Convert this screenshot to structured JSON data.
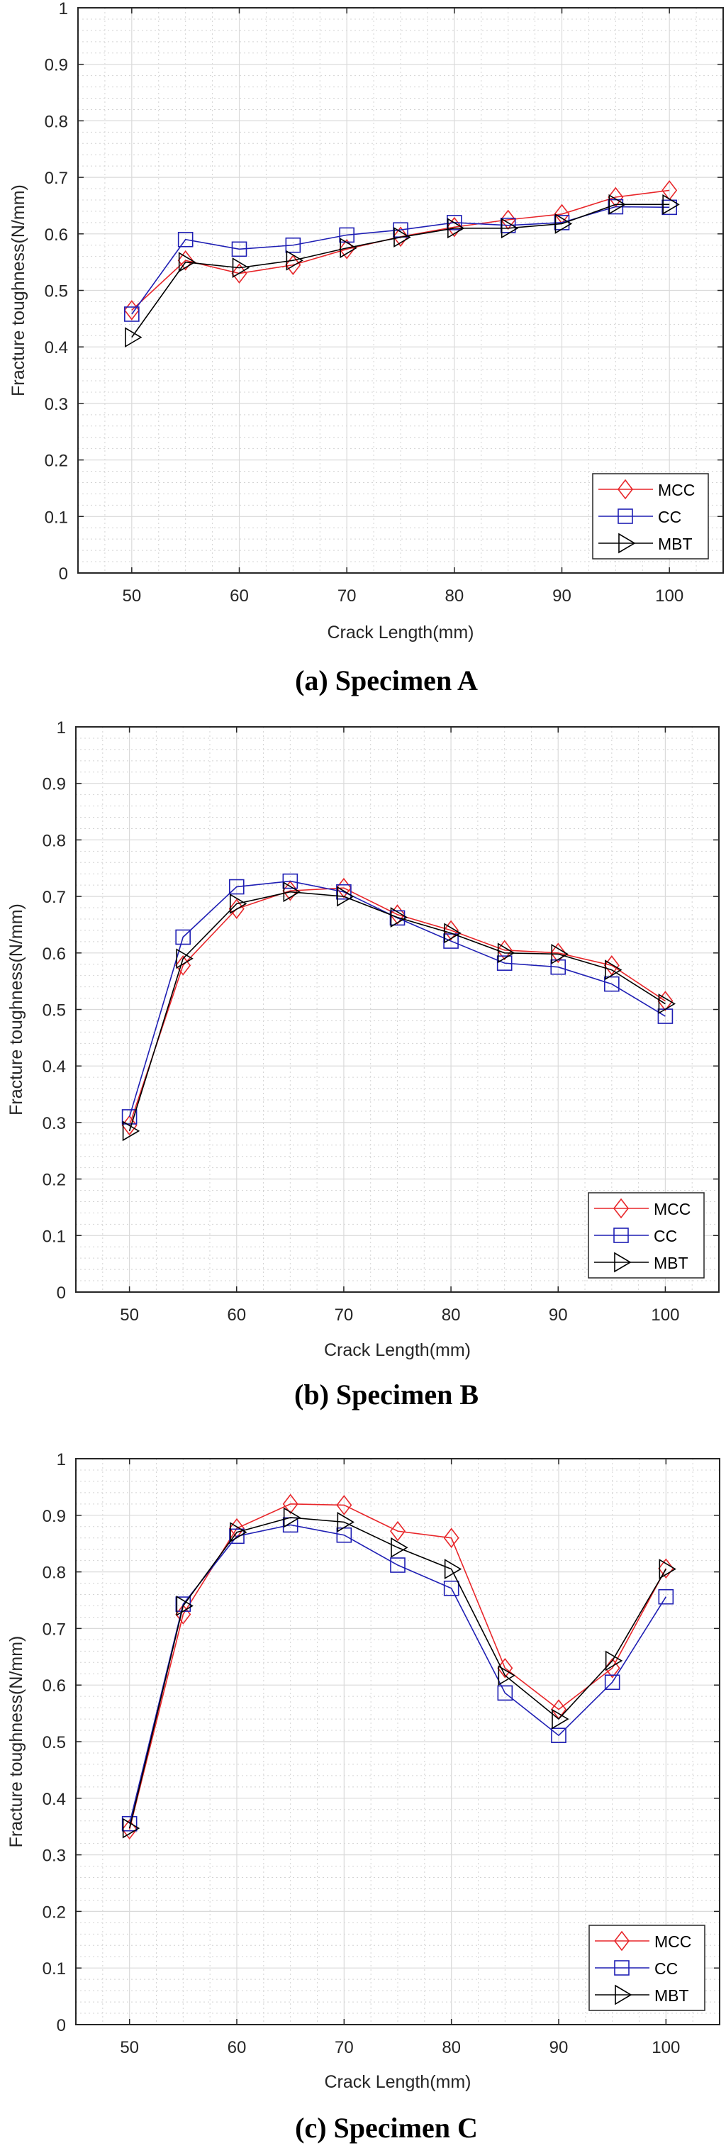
{
  "chart_data": [
    {
      "type": "line",
      "title": "(a) Specimen A",
      "xlabel": "Crack Length(mm)",
      "ylabel": "Fracture toughness(N/mm)",
      "xlim": [
        45,
        105
      ],
      "ylim": [
        0,
        1
      ],
      "x_ticks": [
        50,
        60,
        70,
        80,
        90,
        100
      ],
      "x_tick_labels": [
        "50",
        "60",
        "70",
        "80",
        "90",
        "100"
      ],
      "y_ticks": [
        0,
        0.1,
        0.2,
        0.3,
        0.4,
        0.5,
        0.6,
        0.7,
        0.8,
        0.9,
        1
      ],
      "y_tick_labels": [
        "0",
        "0.1",
        "0.2",
        "0.3",
        "0.4",
        "0.5",
        "0.6",
        "0.7",
        "0.8",
        "0.9",
        "1"
      ],
      "grid": true,
      "minor_grid": true,
      "legend_position": "bottom-right",
      "x": [
        50,
        55,
        60,
        65,
        70,
        75,
        80,
        85,
        90,
        95,
        100
      ],
      "series": [
        {
          "name": "MCC",
          "marker": "diamond",
          "color": "#e8262a",
          "values": [
            0.465,
            0.553,
            0.53,
            0.545,
            0.573,
            0.595,
            0.612,
            0.625,
            0.635,
            0.665,
            0.677
          ]
        },
        {
          "name": "CC",
          "marker": "square",
          "color": "#1f1fb4",
          "values": [
            0.458,
            0.59,
            0.573,
            0.58,
            0.598,
            0.607,
            0.62,
            0.615,
            0.62,
            0.648,
            0.647
          ]
        },
        {
          "name": "MBT",
          "marker": "triangle-right",
          "color": "#000000",
          "values": [
            0.417,
            0.55,
            0.54,
            0.553,
            0.575,
            0.594,
            0.61,
            0.61,
            0.618,
            0.652,
            0.652
          ]
        }
      ]
    },
    {
      "type": "line",
      "title": "(b) Specimen B",
      "xlabel": "Crack Length(mm)",
      "ylabel": "Fracture toughness(N/mm)",
      "xlim": [
        45,
        105
      ],
      "ylim": [
        0,
        1
      ],
      "x_ticks": [
        50,
        60,
        70,
        80,
        90,
        100
      ],
      "x_tick_labels": [
        "50",
        "60",
        "70",
        "80",
        "90",
        "100"
      ],
      "y_ticks": [
        0,
        0.1,
        0.2,
        0.3,
        0.4,
        0.5,
        0.6,
        0.7,
        0.8,
        0.9,
        1
      ],
      "y_tick_labels": [
        "0",
        "0.1",
        "0.2",
        "0.3",
        "0.4",
        "0.5",
        "0.6",
        "0.7",
        "0.8",
        "0.9",
        "1"
      ],
      "grid": true,
      "minor_grid": true,
      "legend_position": "bottom-right",
      "x": [
        50,
        55,
        60,
        65,
        70,
        75,
        80,
        85,
        90,
        95,
        100
      ],
      "series": [
        {
          "name": "MCC",
          "marker": "diamond",
          "color": "#e8262a",
          "values": [
            0.295,
            0.578,
            0.678,
            0.71,
            0.715,
            0.668,
            0.64,
            0.605,
            0.6,
            0.578,
            0.515
          ]
        },
        {
          "name": "CC",
          "marker": "square",
          "color": "#1f1fb4",
          "values": [
            0.31,
            0.628,
            0.717,
            0.727,
            0.708,
            0.662,
            0.621,
            0.582,
            0.575,
            0.545,
            0.488
          ]
        },
        {
          "name": "MBT",
          "marker": "triangle-right",
          "color": "#000000",
          "values": [
            0.285,
            0.59,
            0.687,
            0.708,
            0.7,
            0.663,
            0.635,
            0.6,
            0.598,
            0.57,
            0.51
          ]
        }
      ]
    },
    {
      "type": "line",
      "title": "(c) Specimen C",
      "xlabel": "Crack Length(mm)",
      "ylabel": "Fracture toughness(N/mm)",
      "xlim": [
        45,
        105
      ],
      "ylim": [
        0,
        1
      ],
      "x_ticks": [
        50,
        60,
        70,
        80,
        90,
        100
      ],
      "x_tick_labels": [
        "50",
        "60",
        "70",
        "80",
        "90",
        "100"
      ],
      "y_ticks": [
        0,
        0.1,
        0.2,
        0.3,
        0.4,
        0.5,
        0.6,
        0.7,
        0.8,
        0.9,
        1
      ],
      "y_tick_labels": [
        "0",
        "0.1",
        "0.2",
        "0.3",
        "0.4",
        "0.5",
        "0.6",
        "0.7",
        "0.8",
        "0.9",
        "1"
      ],
      "grid": true,
      "minor_grid": true,
      "legend_position": "bottom-right",
      "x": [
        50,
        55,
        60,
        65,
        70,
        75,
        80,
        85,
        90,
        95,
        100
      ],
      "series": [
        {
          "name": "MCC",
          "marker": "diamond",
          "color": "#e8262a",
          "values": [
            0.345,
            0.725,
            0.877,
            0.92,
            0.918,
            0.872,
            0.86,
            0.63,
            0.557,
            0.63,
            0.806
          ]
        },
        {
          "name": "CC",
          "marker": "square",
          "color": "#1f1fb4",
          "values": [
            0.355,
            0.743,
            0.863,
            0.883,
            0.865,
            0.812,
            0.771,
            0.586,
            0.511,
            0.605,
            0.756
          ]
        },
        {
          "name": "MBT",
          "marker": "triangle-right",
          "color": "#000000",
          "values": [
            0.347,
            0.74,
            0.87,
            0.896,
            0.888,
            0.843,
            0.805,
            0.617,
            0.54,
            0.643,
            0.805
          ]
        }
      ]
    }
  ]
}
